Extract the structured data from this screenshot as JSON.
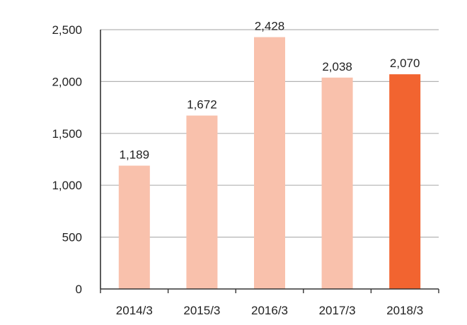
{
  "chart_data": {
    "type": "bar",
    "title": "",
    "xlabel": "",
    "ylabel": "",
    "categories": [
      "2014/3",
      "2015/3",
      "2016/3",
      "2017/3",
      "2018/3"
    ],
    "values": [
      1189,
      1672,
      2428,
      2038,
      2070
    ],
    "value_labels": [
      "1,189",
      "1,672",
      "2,428",
      "2,038",
      "2,070"
    ],
    "ylim": [
      0,
      2500
    ],
    "yticks": [
      0,
      500,
      1000,
      1500,
      2000,
      2500
    ],
    "ytick_labels": [
      "0",
      "500",
      "1,000",
      "1,500",
      "2,000",
      "2,500"
    ],
    "grid": true,
    "legend": "none",
    "colors": {
      "bar": "#f9c1ac",
      "highlight_bar": "#f26430",
      "grid": "#b3b3b3",
      "axis": "#333333"
    },
    "highlight_index": 4
  }
}
